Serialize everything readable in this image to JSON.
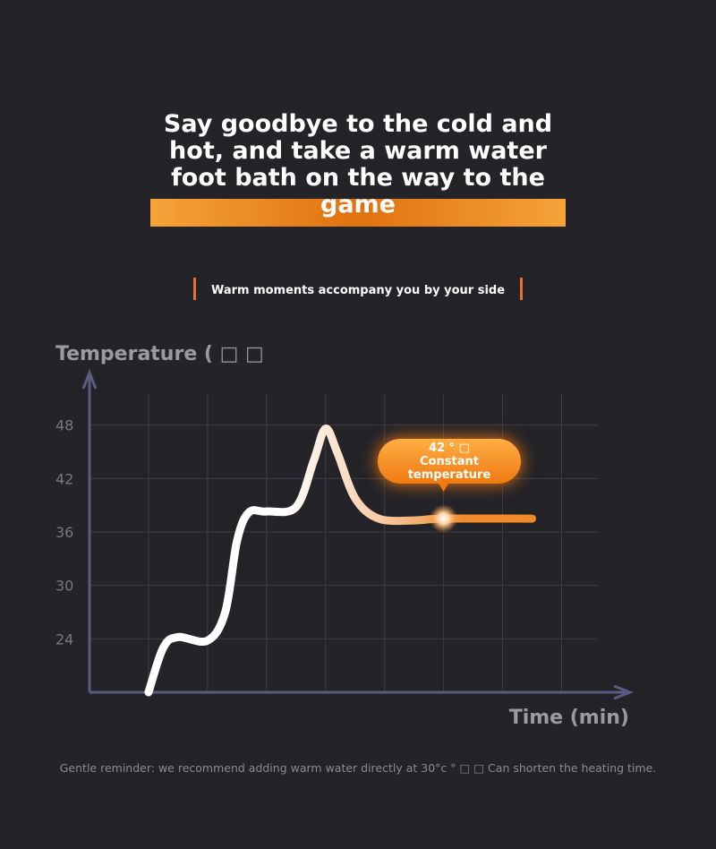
{
  "chart_data": {
    "type": "line",
    "title": "Say goodbye to the cold and hot, and take a warm water foot bath on the way to the game",
    "subtitle": "Warm moments accompany you by your side",
    "y_label": "Temperature ( □ □",
    "x_label": "Time (min)",
    "annotation": "42 ° □ Constant temperature",
    "footnote": "Gentle reminder: we recommend adding warm water directly at 30°c ° □ □ Can shorten the heating time.",
    "x": [
      0,
      0.25,
      0.5,
      1.0,
      1.3,
      1.5,
      1.7,
      2.0,
      2.5,
      2.8,
      3.0,
      3.2,
      3.5,
      3.9,
      4.5,
      5.0,
      6.5
    ],
    "values": [
      18,
      23,
      24.2,
      23.8,
      27,
      35,
      38.2,
      38.3,
      38.8,
      44,
      47.6,
      44.9,
      39.8,
      37.5,
      37.3,
      37.5,
      37.5
    ],
    "color": "#f08a2a",
    "xlim": [
      -1,
      8.1
    ],
    "ylim": [
      18,
      53.5
    ],
    "xticks": [
      0,
      1,
      2,
      3,
      4,
      5,
      6,
      7
    ],
    "yticks": [
      24,
      30,
      36,
      42,
      48
    ],
    "grid": true
  }
}
